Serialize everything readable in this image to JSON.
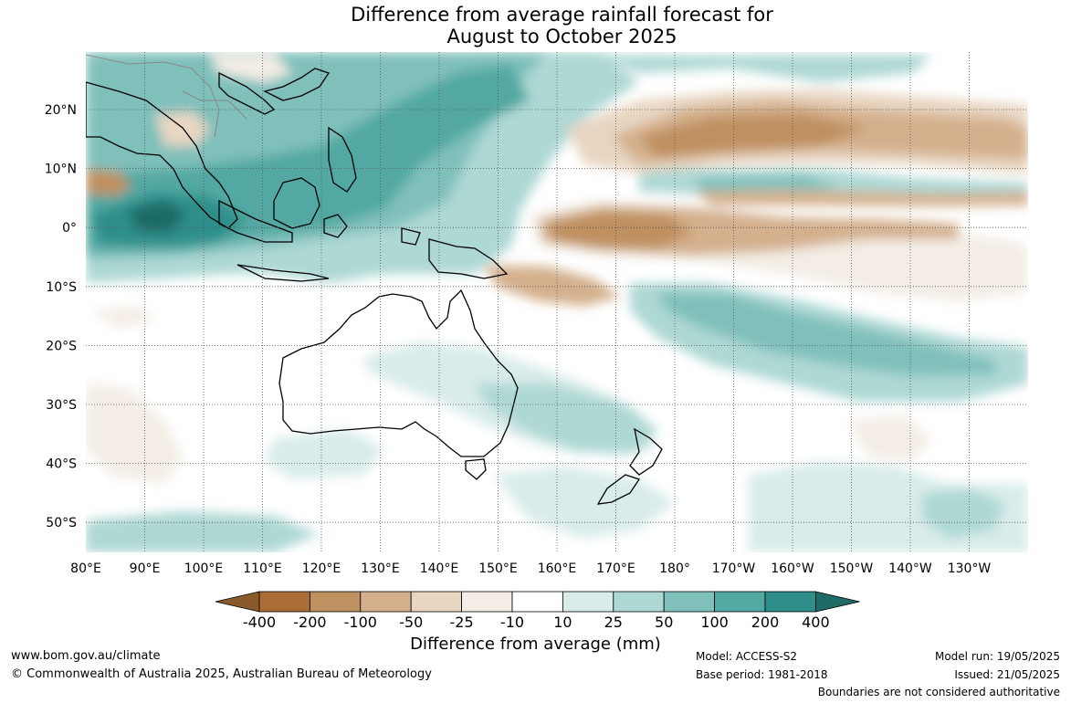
{
  "title": {
    "line1": "Difference from average rainfall forecast for",
    "line2": "August to October 2025"
  },
  "map": {
    "lat_labels": [
      "20°N",
      "10°N",
      "0°",
      "10°S",
      "20°S",
      "30°S",
      "40°S",
      "50°S"
    ],
    "lon_labels": [
      "80°E",
      "90°E",
      "100°E",
      "110°E",
      "120°E",
      "130°E",
      "140°E",
      "150°E",
      "160°E",
      "170°E",
      "180°",
      "170°W",
      "160°W",
      "150°W",
      "140°W",
      "130°W"
    ],
    "grid": "dotted"
  },
  "colorbar": {
    "tick_labels": [
      "-400",
      "-200",
      "-100",
      "-50",
      "-25",
      "-10",
      "10",
      "25",
      "50",
      "100",
      "200",
      "400"
    ],
    "colors": [
      "#a96d35",
      "#bf9060",
      "#d4b08d",
      "#e8d6c2",
      "#f3ede5",
      "#ffffff",
      "#d9ecea",
      "#aed8d4",
      "#80c0bb",
      "#52a8a3",
      "#2e8f8a",
      "#1e6b67",
      "#8a5a2b"
    ],
    "label": "Difference from average (mm)"
  },
  "footer": {
    "website": "www.bom.gov.au/climate",
    "copyright": "© Commonwealth of Australia 2025, Australian Bureau of Meteorology",
    "model": "Model: ACCESS-S2",
    "base_period": "Base period: 1981-2018",
    "model_run": "Model run: 19/05/2025",
    "issued": "Issued: 21/05/2025",
    "disclaimer": "Boundaries are not considered authoritative"
  }
}
